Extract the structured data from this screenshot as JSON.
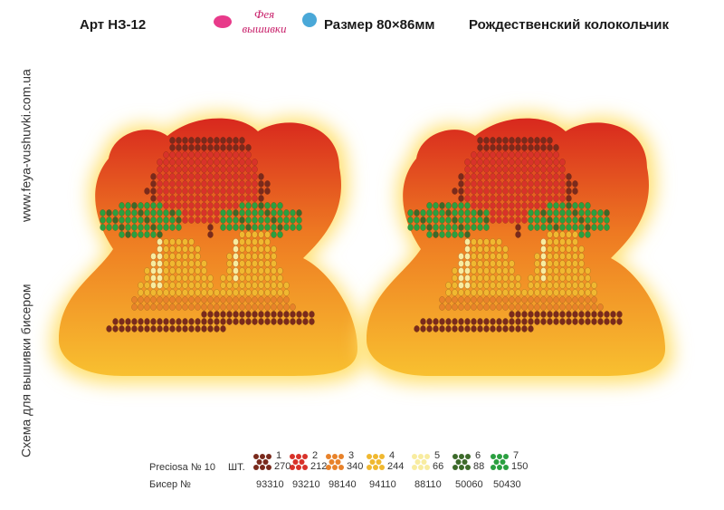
{
  "header": {
    "article": "Арт НЗ-12",
    "logo_top": "Фея",
    "logo_bottom": "вышивки",
    "size": "Размер 80×86мм",
    "title": "Рождественский колокольчик"
  },
  "side": {
    "website": "www.feya-vushuvki.com.ua",
    "caption": "Схема для вышивки бисером"
  },
  "legend": {
    "brand": "Preciosa № 10",
    "count_label": "ШТ.",
    "code_label": "Бисер №",
    "items": [
      {
        "number": "1",
        "count": "270",
        "code": "93310",
        "color": "#7a2a1c"
      },
      {
        "number": "2",
        "count": "212",
        "code": "93210",
        "color": "#d8322a"
      },
      {
        "number": "3",
        "count": "340",
        "code": "98140",
        "color": "#e8822a"
      },
      {
        "number": "4",
        "count": "244",
        "code": "94110",
        "color": "#f0b830"
      },
      {
        "number": "5",
        "count": "66",
        "code": "88110",
        "color": "#f8eca0"
      },
      {
        "number": "6",
        "count": "88",
        "code": "50060",
        "color": "#3c6a2a"
      },
      {
        "number": "7",
        "count": "150",
        "code": "50430",
        "color": "#2aa040"
      }
    ]
  }
}
